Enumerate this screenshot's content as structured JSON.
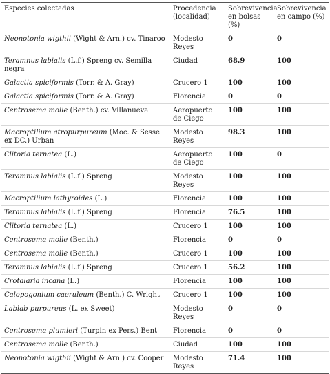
{
  "table": {
    "headers": [
      "Especies colectadas",
      "Procedencia (localidad)",
      "Sobrevivencia en bolsas (%)",
      "Sobrevivencia en campo (%)"
    ],
    "rows": [
      {
        "sci": "Neonotonia wigthii",
        "auth": " (Wight & Arn.) cv. Tinaroo",
        "loc": "Modesto Reyes",
        "bolsas": "0",
        "campo": "0"
      },
      {
        "sci": "Teramnus labialis",
        "auth": " (L.f.) Spreng cv. Semilla negra",
        "loc": "Ciudad",
        "bolsas": "68.9",
        "campo": "100"
      },
      {
        "sci": "Galactia spiciformis",
        "auth": " (Torr. & A. Gray)",
        "loc": "Crucero 1",
        "bolsas": "100",
        "campo": "100"
      },
      {
        "sci": "Galactia spiciformis",
        "auth": " (Torr. & A. Gray)",
        "loc": "Florencia",
        "bolsas": "0",
        "campo": "0"
      },
      {
        "sci": "Centrosema molle",
        "auth": " (Benth.) cv. Villanueva",
        "loc": "Aeropuerto de Ciego",
        "bolsas": "100",
        "campo": "100"
      },
      {
        "sci": "Macroptilium atropurpureum",
        "auth": " (Moc. & Sesse ex DC.) Urban",
        "loc": "Modesto Reyes",
        "bolsas": "98.3",
        "campo": "100"
      },
      {
        "sci": "Clitoria ternatea",
        "auth": " (L.)",
        "loc": "Aeropuerto de Ciego",
        "bolsas": "100",
        "campo": "0"
      },
      {
        "sci": "Teramnus labialis",
        "auth": " (L.f.) Spreng",
        "loc": "Modesto Reyes",
        "bolsas": "100",
        "campo": "100"
      },
      {
        "sci": "Macroptilium lathyroides",
        "auth": " (L.)",
        "loc": "Florencia",
        "bolsas": "100",
        "campo": "100"
      },
      {
        "sci": "Teramnus labialis",
        "auth": " (L.f.) Spreng",
        "loc": "Florencia",
        "bolsas": "76.5",
        "campo": "100"
      },
      {
        "sci": "Clitoria ternatea",
        "auth": " (L.)",
        "loc": "Crucero 1",
        "bolsas": "100",
        "campo": "100"
      },
      {
        "sci": "Centrosema molle",
        "auth": " (Benth.)",
        "loc": "Florencia",
        "bolsas": "0",
        "campo": "0"
      },
      {
        "sci": "Centrosema molle",
        "auth": " (Benth.)",
        "loc": "Crucero 1",
        "bolsas": "100",
        "campo": "100"
      },
      {
        "sci": "Teramnus labialis",
        "auth": " (L.f.) Spreng",
        "loc": "Crucero 1",
        "bolsas": "56.2",
        "campo": "100"
      },
      {
        "sci": "Crotalaria incana",
        "auth": " (L.)",
        "loc": "Florencia",
        "bolsas": "100",
        "campo": "100"
      },
      {
        "sci": "Calopogonium caeruleum",
        "auth": " (Benth.) C. Wright",
        "loc": "Crucero 1",
        "bolsas": "100",
        "campo": "100"
      },
      {
        "sci": "Lablab purpureus",
        "auth": " (L. ex Sweet)",
        "loc": "Modesto Reyes",
        "bolsas": "0",
        "campo": "0"
      },
      {
        "sci": "Centrosema plumieri",
        "auth": " (Turpin ex Pers.) Bent",
        "loc": "Florencia",
        "bolsas": "0",
        "campo": "0"
      },
      {
        "sci": "Centrosema molle",
        "auth": " (Benth.)",
        "loc": "Ciudad",
        "bolsas": "100",
        "campo": "100"
      },
      {
        "sci": "Neonotonia wigthii",
        "auth": " (Wight & Arn.) cv. Cooper",
        "loc": "Modesto Reyes",
        "bolsas": "71.4",
        "campo": "100"
      }
    ]
  }
}
